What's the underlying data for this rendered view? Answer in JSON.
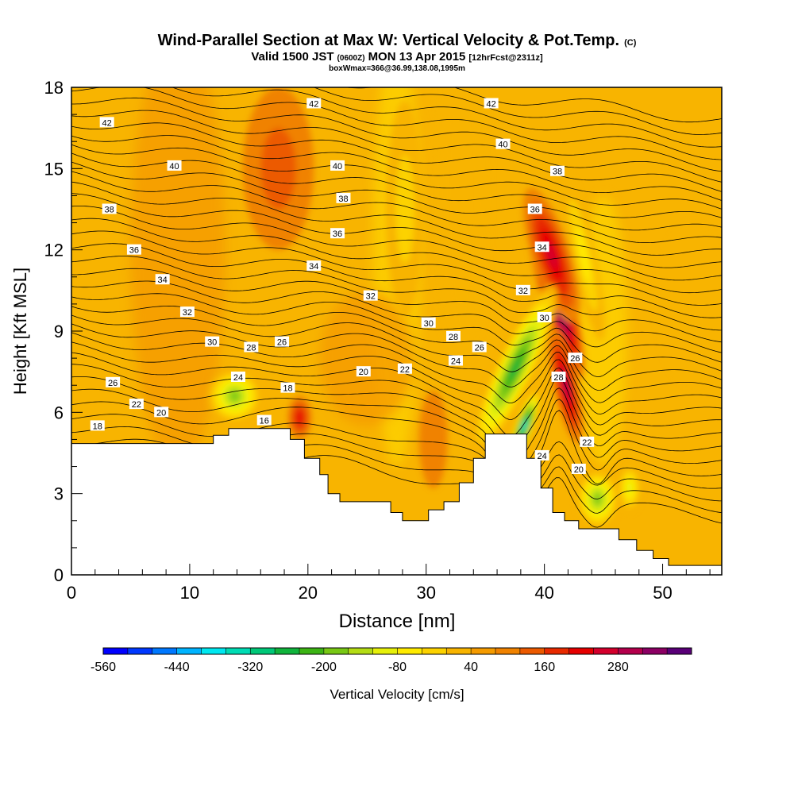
{
  "chart_data": {
    "type": "heatmap",
    "title": "Wind-Parallel Section at Max W: Vertical Velocity & Pot.Temp.",
    "title_mark": "(C)",
    "subtitle_main": "Valid 1500 JST",
    "subtitle_z": "(0600Z)",
    "subtitle_date": "MON 13 Apr 2015",
    "subtitle_fcst": "[12hrFcst@2311z]",
    "subtitle2": "boxWmax=366@36.99,138.08,1995m",
    "xlabel": "Distance [nm]",
    "ylabel": "Height [Kft MSL]",
    "xlim": [
      0,
      55
    ],
    "ylim": [
      0,
      18
    ],
    "x_ticks": [
      "0",
      "10",
      "20",
      "30",
      "40",
      "50"
    ],
    "y_ticks": [
      "0",
      "3",
      "6",
      "9",
      "12",
      "15",
      "18"
    ],
    "colorbar": {
      "label": "Vertical Velocity [cm/s]",
      "tick_labels": [
        "-560",
        "-440",
        "-320",
        "-200",
        "-80",
        "40",
        "160",
        "280"
      ],
      "colors": [
        "#0000ff",
        "#0038ff",
        "#0078ff",
        "#00b4ff",
        "#00e8f0",
        "#00dcb4",
        "#00c878",
        "#10b43c",
        "#3cb414",
        "#78c814",
        "#b4dc14",
        "#e6f00a",
        "#ffeb00",
        "#fcd200",
        "#f8b400",
        "#f59b00",
        "#f08200",
        "#ec5a00",
        "#e82a00",
        "#e60000",
        "#d4002c",
        "#b4004c",
        "#8c0064",
        "#5a0078"
      ]
    },
    "terrain": [
      [
        0,
        4.85
      ],
      [
        12,
        4.85
      ],
      [
        12,
        5.15
      ],
      [
        13.3,
        5.15
      ],
      [
        13.3,
        5.4
      ],
      [
        18.5,
        5.4
      ],
      [
        18.5,
        5.0
      ],
      [
        19.7,
        5.0
      ],
      [
        19.7,
        4.3
      ],
      [
        21,
        4.3
      ],
      [
        21,
        3.7
      ],
      [
        21.7,
        3.7
      ],
      [
        21.7,
        3.0
      ],
      [
        22.7,
        3.0
      ],
      [
        22.7,
        2.7
      ],
      [
        27,
        2.7
      ],
      [
        27,
        2.3
      ],
      [
        28,
        2.3
      ],
      [
        28,
        2.0
      ],
      [
        30.2,
        2.0
      ],
      [
        30.2,
        2.4
      ],
      [
        31.5,
        2.4
      ],
      [
        31.5,
        2.7
      ],
      [
        32.8,
        2.7
      ],
      [
        32.8,
        3.4
      ],
      [
        34,
        3.4
      ],
      [
        34,
        4.3
      ],
      [
        35,
        4.3
      ],
      [
        35,
        5.2
      ],
      [
        38.5,
        5.2
      ],
      [
        38.5,
        4.3
      ],
      [
        39.7,
        4.3
      ],
      [
        39.7,
        3.2
      ],
      [
        40.7,
        3.2
      ],
      [
        40.7,
        2.3
      ],
      [
        41.7,
        2.3
      ],
      [
        41.7,
        2.0
      ],
      [
        42.9,
        2.0
      ],
      [
        42.9,
        1.7
      ],
      [
        46.3,
        1.7
      ],
      [
        46.3,
        1.3
      ],
      [
        47.8,
        1.3
      ],
      [
        47.8,
        0.9
      ],
      [
        49.2,
        0.9
      ],
      [
        49.2,
        0.6
      ],
      [
        50.5,
        0.6
      ],
      [
        50.5,
        0.35
      ],
      [
        55,
        0.35
      ]
    ],
    "w_cells": [
      {
        "x": 41,
        "y": 10.3,
        "rx": 1.3,
        "ry": 3.2,
        "rot": -16,
        "w": 340
      },
      {
        "x": 40.6,
        "y": 11.8,
        "rx": 1.6,
        "ry": 2.6,
        "rot": -18,
        "w": 180
      },
      {
        "x": 41.8,
        "y": 7.0,
        "rx": 1.0,
        "ry": 2.2,
        "rot": -12,
        "w": 230
      },
      {
        "x": 37.5,
        "y": 7.6,
        "rx": 1.6,
        "ry": 3.4,
        "rot": 25,
        "w": -300
      },
      {
        "x": 38.3,
        "y": 5.5,
        "rx": 0.8,
        "ry": 1.4,
        "rot": 20,
        "w": -440
      },
      {
        "x": 43.3,
        "y": 11.8,
        "rx": 1.0,
        "ry": 3.2,
        "rot": -12,
        "w": -110
      },
      {
        "x": 44.5,
        "y": 2.8,
        "rx": 1.8,
        "ry": 1.1,
        "rot": 0,
        "w": -230
      },
      {
        "x": 47.2,
        "y": 3.2,
        "rx": 1.0,
        "ry": 0.9,
        "rot": 0,
        "w": -140
      },
      {
        "x": 13.8,
        "y": 6.6,
        "rx": 2.3,
        "ry": 1.0,
        "rot": 28,
        "w": -230
      },
      {
        "x": 19.3,
        "y": 5.8,
        "rx": 1.0,
        "ry": 0.8,
        "rot": 0,
        "w": 140
      },
      {
        "x": 17.5,
        "y": 15.0,
        "rx": 3.0,
        "ry": 3.0,
        "rot": 0,
        "w": 60
      },
      {
        "x": 28.2,
        "y": 13.5,
        "rx": 1.6,
        "ry": 4.0,
        "rot": 0,
        "w": -60
      },
      {
        "x": 30.6,
        "y": 5.0,
        "rx": 1.2,
        "ry": 1.8,
        "rot": 0,
        "w": 40
      },
      {
        "x": 52.5,
        "y": 10.0,
        "rx": 3.0,
        "ry": 3.0,
        "rot": 0,
        "w": -40
      }
    ],
    "contour_labels": [
      {
        "text": "42",
        "x": 3,
        "y": 16.7
      },
      {
        "text": "40",
        "x": 8.7,
        "y": 15.1
      },
      {
        "text": "38",
        "x": 3.2,
        "y": 13.5
      },
      {
        "text": "36",
        "x": 5.3,
        "y": 12.0
      },
      {
        "text": "34",
        "x": 7.7,
        "y": 10.9
      },
      {
        "text": "32",
        "x": 9.8,
        "y": 9.7
      },
      {
        "text": "30",
        "x": 11.9,
        "y": 8.6
      },
      {
        "text": "28",
        "x": 15.2,
        "y": 8.4
      },
      {
        "text": "26",
        "x": 17.8,
        "y": 8.6
      },
      {
        "text": "24",
        "x": 14.1,
        "y": 7.3
      },
      {
        "text": "26",
        "x": 3.5,
        "y": 7.1
      },
      {
        "text": "22",
        "x": 5.5,
        "y": 6.3
      },
      {
        "text": "20",
        "x": 7.6,
        "y": 6.0
      },
      {
        "text": "18",
        "x": 2.2,
        "y": 5.5
      },
      {
        "text": "18",
        "x": 18.3,
        "y": 6.9
      },
      {
        "text": "16",
        "x": 16.3,
        "y": 5.7
      },
      {
        "text": "20",
        "x": 24.7,
        "y": 7.5
      },
      {
        "text": "22",
        "x": 28.2,
        "y": 7.6
      },
      {
        "text": "24",
        "x": 32.5,
        "y": 7.9
      },
      {
        "text": "26",
        "x": 34.5,
        "y": 8.4
      },
      {
        "text": "28",
        "x": 32.3,
        "y": 8.8
      },
      {
        "text": "30",
        "x": 30.2,
        "y": 9.3
      },
      {
        "text": "32",
        "x": 25.3,
        "y": 10.3
      },
      {
        "text": "34",
        "x": 20.5,
        "y": 11.4
      },
      {
        "text": "36",
        "x": 22.5,
        "y": 12.6
      },
      {
        "text": "38",
        "x": 23,
        "y": 13.9
      },
      {
        "text": "40",
        "x": 22.5,
        "y": 15.1
      },
      {
        "text": "42",
        "x": 20.5,
        "y": 17.4
      },
      {
        "text": "42",
        "x": 35.5,
        "y": 17.4
      },
      {
        "text": "40",
        "x": 36.5,
        "y": 15.9
      },
      {
        "text": "38",
        "x": 41.1,
        "y": 14.9
      },
      {
        "text": "36",
        "x": 39.2,
        "y": 13.5
      },
      {
        "text": "34",
        "x": 39.8,
        "y": 12.1
      },
      {
        "text": "32",
        "x": 38.2,
        "y": 10.5
      },
      {
        "text": "30",
        "x": 40,
        "y": 9.5
      },
      {
        "text": "26",
        "x": 42.6,
        "y": 8.0
      },
      {
        "text": "28",
        "x": 41.2,
        "y": 7.3
      },
      {
        "text": "24",
        "x": 39.8,
        "y": 4.4
      },
      {
        "text": "22",
        "x": 43.6,
        "y": 4.9
      },
      {
        "text": "20",
        "x": 42.9,
        "y": 3.9
      }
    ]
  }
}
